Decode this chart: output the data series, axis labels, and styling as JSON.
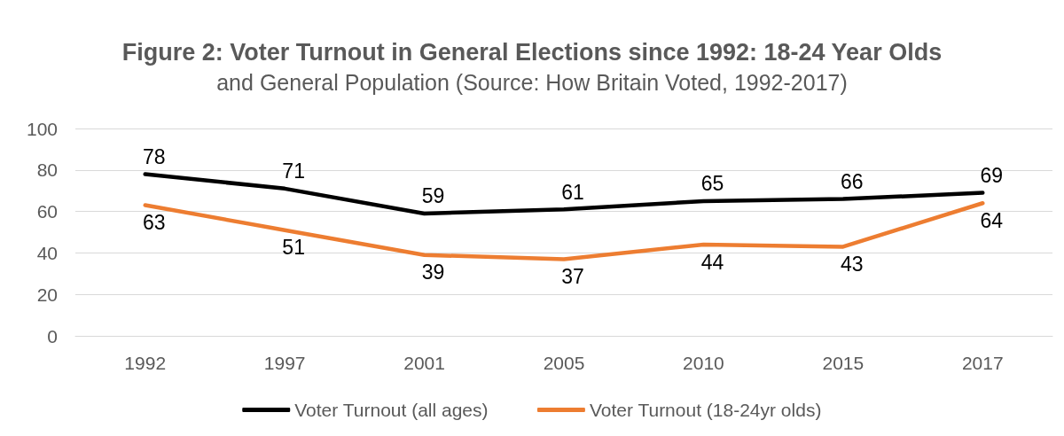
{
  "chart_data": {
    "type": "line",
    "title": "Figure 2: Voter Turnout in General Elections since 1992: 18-24 Year Olds",
    "subtitle": "and General Population (Source: How Britain Voted, 1992-2017)",
    "categories": [
      "1992",
      "1997",
      "2001",
      "2005",
      "2010",
      "2015",
      "2017"
    ],
    "series": [
      {
        "name": "Voter Turnout (all ages)",
        "color": "#000000",
        "values": [
          78,
          71,
          59,
          61,
          65,
          66,
          69
        ]
      },
      {
        "name": "Voter Turnout (18-24yr olds)",
        "color": "#ed7d31",
        "values": [
          63,
          51,
          39,
          37,
          44,
          43,
          64
        ]
      }
    ],
    "ylim": [
      0,
      100
    ],
    "yticks": [
      0,
      20,
      40,
      60,
      80,
      100
    ],
    "grid": "y",
    "legend": "bottom",
    "data_labels": true
  }
}
